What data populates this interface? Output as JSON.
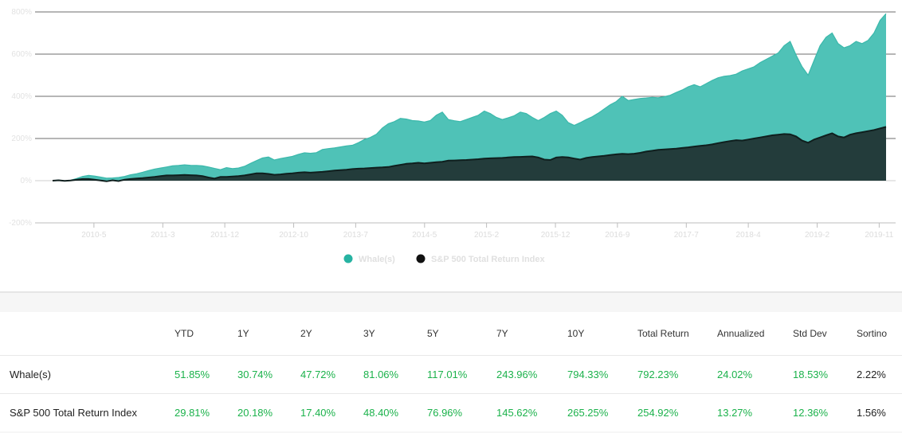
{
  "chart_data": {
    "type": "area",
    "title": "",
    "xlabel": "",
    "ylabel": "",
    "ylim": [
      -200,
      800
    ],
    "y_ticks": [
      -200,
      0,
      200,
      400,
      600,
      800
    ],
    "y_tick_labels": [
      "-200%",
      "0%",
      "200%",
      "400%",
      "600%",
      "800%"
    ],
    "x_start": "2009-11",
    "x_end": "2019-12",
    "x_ticks": [
      "2010-5",
      "2011-3",
      "2011-12",
      "2012-10",
      "2013-7",
      "2014-5",
      "2015-2",
      "2015-12",
      "2016-9",
      "2017-7",
      "2018-4",
      "2019-2",
      "2019-11"
    ],
    "grid": true,
    "legend_position": "bottom-center",
    "series": [
      {
        "name": "Whale(s)",
        "color": "#4fc2b7",
        "values": [
          0,
          3,
          -1,
          2,
          10,
          20,
          25,
          22,
          17,
          12,
          13,
          15,
          20,
          28,
          33,
          40,
          48,
          55,
          60,
          65,
          70,
          72,
          75,
          73,
          72,
          70,
          65,
          58,
          52,
          62,
          57,
          60,
          68,
          82,
          95,
          108,
          112,
          98,
          105,
          110,
          115,
          125,
          132,
          130,
          133,
          148,
          152,
          155,
          160,
          165,
          168,
          180,
          195,
          205,
          220,
          250,
          270,
          280,
          295,
          292,
          285,
          283,
          278,
          285,
          310,
          325,
          290,
          284,
          280,
          290,
          300,
          310,
          330,
          318,
          300,
          290,
          298,
          308,
          325,
          318,
          300,
          285,
          300,
          318,
          330,
          310,
          275,
          262,
          275,
          290,
          303,
          320,
          340,
          360,
          375,
          400,
          380,
          385,
          390,
          392,
          395,
          393,
          398,
          405,
          418,
          430,
          445,
          455,
          445,
          460,
          475,
          488,
          495,
          498,
          505,
          520,
          530,
          540,
          560,
          575,
          590,
          605,
          640,
          660,
          595,
          540,
          500,
          570,
          640,
          680,
          700,
          650,
          630,
          640,
          660,
          650,
          665,
          700,
          760,
          792
        ]
      },
      {
        "name": "S&P 500 Total Return Index",
        "color": "#233c3b",
        "values": [
          0,
          2,
          -1,
          1,
          5,
          8,
          8,
          5,
          1,
          -3,
          2,
          -2,
          5,
          8,
          10,
          12,
          15,
          18,
          22,
          25,
          25,
          26,
          27,
          26,
          25,
          22,
          15,
          10,
          18,
          18,
          20,
          22,
          25,
          30,
          35,
          35,
          32,
          28,
          30,
          33,
          35,
          38,
          40,
          38,
          40,
          42,
          45,
          48,
          50,
          52,
          55,
          57,
          58,
          60,
          62,
          63,
          65,
          70,
          75,
          80,
          82,
          85,
          82,
          85,
          88,
          90,
          95,
          96,
          97,
          98,
          100,
          102,
          105,
          106,
          107,
          108,
          110,
          112,
          113,
          114,
          115,
          110,
          100,
          98,
          110,
          112,
          110,
          105,
          100,
          108,
          112,
          115,
          118,
          122,
          125,
          127,
          126,
          128,
          132,
          138,
          142,
          146,
          148,
          150,
          152,
          155,
          158,
          162,
          165,
          168,
          172,
          178,
          183,
          188,
          192,
          190,
          195,
          200,
          205,
          210,
          215,
          218,
          221,
          220,
          210,
          190,
          180,
          195,
          205,
          215,
          225,
          210,
          205,
          218,
          225,
          230,
          235,
          240,
          248,
          255
        ]
      }
    ]
  },
  "legend": [
    {
      "label": "Whale(s)",
      "color": "#27b3a2"
    },
    {
      "label": "S&P 500 Total Return Index",
      "color": "#111111"
    }
  ],
  "table": {
    "headers": [
      "",
      "YTD",
      "1Y",
      "2Y",
      "3Y",
      "5Y",
      "7Y",
      "10Y",
      "Total Return",
      "Annualized",
      "Std Dev",
      "Sortino"
    ],
    "rows": [
      {
        "name": "Whale(s)",
        "cells": [
          "51.85%",
          "30.74%",
          "47.72%",
          "81.06%",
          "117.01%",
          "243.96%",
          "794.33%",
          "792.23%",
          "24.02%",
          "18.53%",
          "2.22%"
        ]
      },
      {
        "name": "S&P 500 Total Return Index",
        "cells": [
          "29.81%",
          "20.18%",
          "17.40%",
          "48.40%",
          "76.96%",
          "145.62%",
          "265.25%",
          "254.92%",
          "13.27%",
          "12.36%",
          "1.56%"
        ]
      }
    ]
  }
}
